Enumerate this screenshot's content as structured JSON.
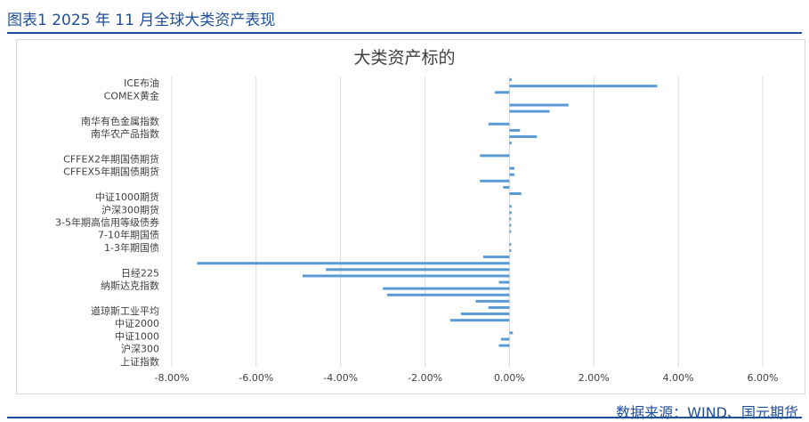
{
  "figure_title": "图表1  2025 年 11 月全球大类资产表现",
  "source": "数据来源：WIND、国元期货",
  "colors": {
    "bar": "#5b9bd5",
    "grid": "#d9d9d9",
    "label": "#404040",
    "accent": "#1f4e9a"
  },
  "chart_data": {
    "type": "bar",
    "orientation": "horizontal",
    "title": "大类资产标的",
    "xlim": [
      -0.08,
      0.06
    ],
    "xticks": [
      -0.08,
      -0.06,
      -0.04,
      -0.02,
      0.0,
      0.02,
      0.04,
      0.06
    ],
    "xtick_labels": [
      "-8.00%",
      "-6.00%",
      "-4.00%",
      "-2.00%",
      "0.00%",
      "2.00%",
      "4.00%",
      "6.00%"
    ],
    "categories": [
      {
        "label": "ICE布油",
        "values": [
          0.0005,
          0.035
        ]
      },
      {
        "label": "COMEX黄金",
        "values": [
          -0.0035,
          0.0
        ]
      },
      {
        "label": "",
        "values": [
          0.014,
          0.0095
        ]
      },
      {
        "label": "南华有色金属指数",
        "values": [
          0.0,
          -0.005
        ]
      },
      {
        "label": "南华农产品指数",
        "values": [
          0.0025,
          0.0065
        ]
      },
      {
        "label": "",
        "values": [
          0.0005,
          0.0
        ]
      },
      {
        "label": "CFFEX2年期国债期货",
        "values": [
          -0.007,
          0.0
        ]
      },
      {
        "label": "CFFEX5年期国债期货",
        "values": [
          0.0012,
          0.0012
        ]
      },
      {
        "label": "",
        "values": [
          -0.007,
          -0.0015
        ]
      },
      {
        "label": "中证1000期货",
        "values": [
          0.0028,
          0.0
        ]
      },
      {
        "label": "沪深300期货",
        "values": [
          0.0005,
          0.0005
        ]
      },
      {
        "label": "3-5年期高信用等级债券",
        "values": [
          0.0004,
          0.0004
        ]
      },
      {
        "label": "7-10年期国债",
        "values": [
          0.0004,
          0.0
        ]
      },
      {
        "label": "1-3年期国债",
        "values": [
          0.0004,
          0.0004
        ]
      },
      {
        "label": "",
        "values": [
          -0.0062,
          -0.074
        ]
      },
      {
        "label": "日经225",
        "values": [
          -0.0435,
          -0.049
        ]
      },
      {
        "label": "纳斯达克指数",
        "values": [
          -0.0025,
          -0.03
        ]
      },
      {
        "label": "",
        "values": [
          -0.029,
          -0.008
        ]
      },
      {
        "label": "道琼斯工业平均",
        "values": [
          -0.005,
          -0.0115
        ]
      },
      {
        "label": "中证2000",
        "values": [
          -0.014,
          0.0
        ]
      },
      {
        "label": "中证1000",
        "values": [
          0.0008,
          -0.002
        ]
      },
      {
        "label": "沪深300",
        "values": [
          -0.0025,
          0.0
        ]
      },
      {
        "label": "上证指数",
        "values": [
          0.0,
          0.0
        ]
      }
    ]
  }
}
